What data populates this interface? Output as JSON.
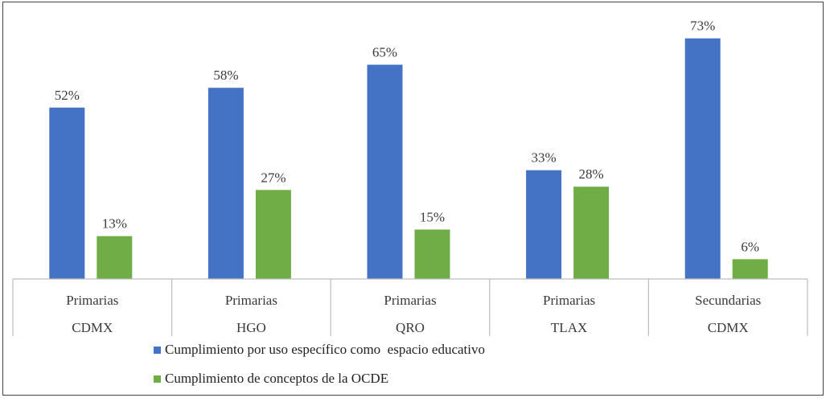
{
  "chart_data": {
    "type": "bar",
    "categories": [
      [
        "Primarias",
        "CDMX"
      ],
      [
        "Primarias",
        "HGO"
      ],
      [
        "Primarias",
        "QRO"
      ],
      [
        "Primarias",
        "TLAX"
      ],
      [
        "Secundarias",
        "CDMX"
      ]
    ],
    "series": [
      {
        "name": "Cumplimiento por uso específico como  espacio educativo",
        "color": "#4472C4",
        "values": [
          52,
          58,
          65,
          33,
          73
        ],
        "labels": [
          "52%",
          "58%",
          "65%",
          "33%",
          "73%"
        ]
      },
      {
        "name": "Cumplimiento de conceptos de la OCDE",
        "color": "#70AD47",
        "values": [
          13,
          27,
          15,
          28,
          6
        ],
        "labels": [
          "13%",
          "27%",
          "15%",
          "28%",
          "6%"
        ]
      }
    ],
    "ylim": [
      0,
      80
    ],
    "grid": false,
    "legend_position": "bottom"
  }
}
